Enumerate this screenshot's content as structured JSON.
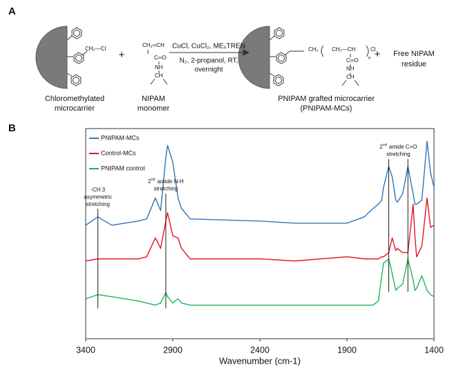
{
  "panel_labels": [
    "A",
    "B"
  ],
  "panel_a": {
    "reactant_label": [
      "Chloromethylated",
      "microcarrier"
    ],
    "monomer_label": [
      "NIPAM",
      "monomer"
    ],
    "product_label": [
      "PNIPAM grafted microcarrier",
      "(PNIPAM-MCs)"
    ],
    "residue_label": [
      "Free NIPAM",
      "residue"
    ],
    "plus": "+",
    "conditions": [
      "CuCl, CuCl₂, ME₆TREN",
      "N₂, 2-propanol, RT,",
      "overnight"
    ],
    "reactant_group": "CH₂—Cl",
    "monomer_groups": [
      "CH₂═CH",
      "C═O",
      "NH",
      "CH"
    ],
    "product_groups": [
      "CH₂",
      "CH₂—CH",
      "C═O",
      "NH",
      "CH",
      "n",
      "Cl"
    ]
  },
  "chart_data": {
    "type": "line",
    "x_label": "Wavenumber (cm-1)",
    "xlim": [
      3400,
      1400
    ],
    "xticks": [
      3400,
      2900,
      2400,
      1900,
      1400
    ],
    "ylim": [
      0,
      100
    ],
    "legend": "upper left",
    "x": [
      3400,
      3330,
      3250,
      3100,
      3050,
      3000,
      2970,
      2940,
      2930,
      2900,
      2870,
      2850,
      2800,
      2400,
      2200,
      1900,
      1800,
      1750,
      1720,
      1700,
      1690,
      1660,
      1640,
      1620,
      1610,
      1580,
      1550,
      1520,
      1510,
      1500,
      1470,
      1440,
      1420,
      1400
    ],
    "series": [
      {
        "name": "PNIPAM-MCs",
        "color": "#2e75b6",
        "values": [
          54,
          58,
          54,
          56,
          57,
          67,
          61,
          86,
          92,
          84,
          67,
          62,
          57,
          56,
          55,
          55,
          58,
          62,
          64,
          66,
          72,
          82,
          77,
          66,
          65,
          69,
          82,
          69,
          64,
          64,
          66,
          94,
          79,
          72
        ]
      },
      {
        "name": "Control-MCs",
        "color": "#e3141e",
        "values": [
          37,
          38,
          38,
          38,
          39,
          48,
          43,
          56,
          60,
          49,
          48,
          43,
          38,
          38,
          37,
          39,
          38,
          38,
          38,
          39,
          39,
          41,
          48,
          42,
          43,
          41,
          41,
          64,
          49,
          39,
          44,
          67,
          53,
          54
        ]
      },
      {
        "name": "PNIPAM control",
        "color": "#1fb355",
        "values": [
          19,
          21,
          20,
          18,
          17,
          16,
          17,
          22,
          20,
          17,
          19,
          17,
          16,
          16,
          16,
          16,
          16,
          16,
          18,
          30,
          36,
          38,
          31,
          23,
          24,
          26,
          38,
          28,
          23,
          24,
          30,
          23,
          21,
          20
        ]
      }
    ],
    "annotations": [
      {
        "lines": [
          "-CH 3",
          "asymmetric",
          "stretching"
        ],
        "x": [
          3330
        ]
      },
      {
        "ordinal": [
          "2",
          "nd"
        ],
        "lines": [
          "amide  N-H",
          "stretching"
        ],
        "x": [
          2940
        ]
      },
      {
        "ordinal": [
          "2",
          "nd"
        ],
        "lines": [
          "amide C=O",
          "stretching"
        ],
        "x": [
          1660,
          1550
        ]
      }
    ]
  }
}
